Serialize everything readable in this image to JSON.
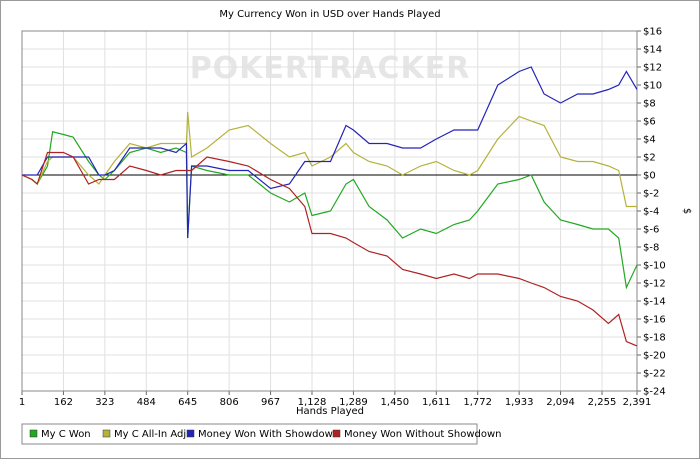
{
  "chart_data": {
    "type": "line",
    "title": "My Currency Won in USD over Hands Played",
    "watermark": "POKERTRACKER",
    "x_label": "Hands Played",
    "y_label": "$",
    "x": [
      1,
      40,
      60,
      100,
      120,
      162,
      200,
      260,
      300,
      323,
      360,
      420,
      484,
      540,
      600,
      640,
      645,
      660,
      720,
      806,
      880,
      967,
      1040,
      1100,
      1128,
      1200,
      1260,
      1289,
      1350,
      1420,
      1480,
      1550,
      1611,
      1680,
      1740,
      1772,
      1850,
      1933,
      1980,
      2030,
      2094,
      2160,
      2220,
      2280,
      2320,
      2350,
      2391
    ],
    "series": [
      {
        "name": "My C Won",
        "color": "#22a822",
        "values": [
          0,
          -0.5,
          -1,
          1,
          4.8,
          4.5,
          4.2,
          1.5,
          0,
          -0.5,
          0.5,
          2.5,
          3,
          2.5,
          3,
          2.5,
          -7,
          1,
          0.5,
          0,
          0,
          -2,
          -3,
          -2,
          -4.5,
          -4,
          -1,
          -0.5,
          -3.5,
          -5,
          -7,
          -6,
          -6.5,
          -5.5,
          -5,
          -4,
          -1,
          -0.5,
          0,
          -3,
          -5,
          -5.5,
          -6,
          -6,
          -7,
          -12.5,
          -10
        ]
      },
      {
        "name": "My C All-In Adj",
        "color": "#b5b23a",
        "values": [
          0,
          -0.5,
          -1,
          1.5,
          2,
          2,
          2,
          0,
          -1,
          0,
          1.5,
          3.5,
          3,
          3.5,
          3.5,
          3.5,
          7,
          2,
          3,
          5,
          5.5,
          3.5,
          2,
          2.5,
          1,
          2,
          3.5,
          2.5,
          1.5,
          1,
          0,
          1,
          1.5,
          0.5,
          0,
          0.5,
          4,
          6.5,
          6,
          5.5,
          2,
          1.5,
          1.5,
          1,
          0.5,
          -3.5,
          -3.5
        ]
      },
      {
        "name": "Money Won With Showdown",
        "color": "#2424b8",
        "values": [
          0,
          0,
          0,
          2,
          2,
          2,
          2,
          2,
          0,
          0,
          0.5,
          3,
          3,
          3,
          2.5,
          3.5,
          -7,
          1,
          1,
          0.5,
          0.5,
          -1.5,
          -1,
          1.5,
          1.5,
          1.5,
          5.5,
          5,
          3.5,
          3.5,
          3,
          3,
          4,
          5,
          5,
          5,
          10,
          11.5,
          12,
          9,
          8,
          9,
          9,
          9.5,
          10,
          11.5,
          9.5
        ]
      },
      {
        "name": "Money Won Without Showdown",
        "color": "#b02222",
        "values": [
          0,
          -0.5,
          -1,
          2.5,
          2.5,
          2.5,
          2,
          -1,
          -0.5,
          -0.5,
          -0.5,
          1,
          0.5,
          0,
          0.5,
          0.5,
          0.5,
          0.5,
          2,
          1.5,
          1,
          -0.5,
          -1.5,
          -3.5,
          -6.5,
          -6.5,
          -7,
          -7.5,
          -8.5,
          -9,
          -10.5,
          -11,
          -11.5,
          -11,
          -11.5,
          -11,
          -11,
          -11.5,
          -12,
          -12.5,
          -13.5,
          -14,
          -15,
          -16.5,
          -15.5,
          -18.5,
          -19
        ]
      }
    ],
    "xlim": [
      1,
      2391
    ],
    "xticks": [
      1,
      162,
      323,
      484,
      645,
      806,
      967,
      {
        "value": 1128,
        "label": "1,128"
      },
      {
        "value": 1289,
        "label": "1,289"
      },
      {
        "value": 1450,
        "label": "1,450"
      },
      {
        "value": 1611,
        "label": "1,611"
      },
      {
        "value": 1772,
        "label": "1,772"
      },
      {
        "value": 1933,
        "label": "1,933"
      },
      {
        "value": 2094,
        "label": "2,094"
      },
      {
        "value": 2255,
        "label": "2,255"
      },
      {
        "value": 2391,
        "label": "2,391"
      }
    ],
    "ylim": [
      -24,
      16
    ],
    "yticks": [
      {
        "value": 16,
        "label": "$16"
      },
      {
        "value": 14,
        "label": "$14"
      },
      {
        "value": 12,
        "label": "$12"
      },
      {
        "value": 10,
        "label": "$10"
      },
      {
        "value": 8,
        "label": "$8"
      },
      {
        "value": 6,
        "label": "$6"
      },
      {
        "value": 4,
        "label": "$4"
      },
      {
        "value": 2,
        "label": "$2"
      },
      {
        "value": 0,
        "label": "$0"
      },
      {
        "value": -2,
        "label": "$-2"
      },
      {
        "value": -4,
        "label": "$-4"
      },
      {
        "value": -6,
        "label": "$-6"
      },
      {
        "value": -8,
        "label": "$-8"
      },
      {
        "value": -10,
        "label": "$-10"
      },
      {
        "value": -12,
        "label": "$-12"
      },
      {
        "value": -14,
        "label": "$-14"
      },
      {
        "value": -16,
        "label": "$-16"
      },
      {
        "value": -18,
        "label": "$-18"
      },
      {
        "value": -20,
        "label": "$-20"
      },
      {
        "value": -22,
        "label": "$-22"
      },
      {
        "value": -24,
        "label": "$-24"
      }
    ],
    "grid": true,
    "legend": "bottom"
  }
}
